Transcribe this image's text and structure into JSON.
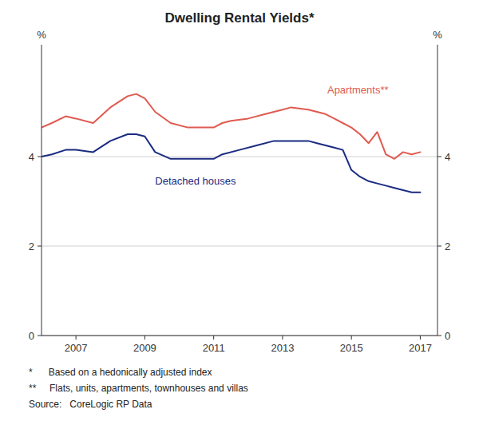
{
  "chart_data": {
    "type": "line",
    "title": "Dwelling Rental Yields*",
    "y_label": "%",
    "y2_label": "%",
    "xlim": [
      2006.0,
      2017.5
    ],
    "xticks": [
      2007,
      2009,
      2011,
      2013,
      2015,
      2017
    ],
    "ylim": [
      0,
      6.5
    ],
    "yticks": [
      0,
      2,
      4
    ],
    "y2lim": [
      0,
      6.5
    ],
    "y2ticks": [
      0,
      2,
      4
    ],
    "grid": true,
    "series": [
      {
        "color": "#e05a50",
        "x": [
          2006.0,
          2006.3,
          2006.7,
          2007.0,
          2007.5,
          2008.0,
          2008.5,
          2008.75,
          2009.0,
          2009.3,
          2009.75,
          2010.25,
          2010.75,
          2011.0,
          2011.25,
          2011.5,
          2012.0,
          2012.5,
          2012.75,
          2013.0,
          2013.25,
          2013.75,
          2014.0,
          2014.25,
          2014.5,
          2014.75,
          2015.0,
          2015.25,
          2015.5,
          2015.75,
          2016.0,
          2016.25,
          2016.5,
          2016.75,
          2017.0
        ],
        "values": [
          4.65,
          4.75,
          4.9,
          4.85,
          4.75,
          5.1,
          5.35,
          5.4,
          5.3,
          5.0,
          4.75,
          4.65,
          4.65,
          4.65,
          4.75,
          4.8,
          4.85,
          4.95,
          5.0,
          5.05,
          5.1,
          5.05,
          5.0,
          4.95,
          4.85,
          4.75,
          4.65,
          4.5,
          4.3,
          4.55,
          4.05,
          3.95,
          4.1,
          4.05,
          4.1
        ]
      },
      {
        "color": "#1a2b80",
        "x": [
          2006.0,
          2006.3,
          2006.7,
          2007.0,
          2007.5,
          2008.0,
          2008.5,
          2008.75,
          2009.0,
          2009.3,
          2009.75,
          2010.0,
          2010.5,
          2010.75,
          2011.0,
          2011.25,
          2011.75,
          2012.25,
          2012.75,
          2013.0,
          2013.25,
          2013.5,
          2013.75,
          2014.0,
          2014.25,
          2014.5,
          2014.75,
          2015.0,
          2015.25,
          2015.5,
          2015.75,
          2016.0,
          2016.25,
          2016.5,
          2016.75,
          2017.0
        ],
        "values": [
          4.0,
          4.05,
          4.15,
          4.15,
          4.1,
          4.35,
          4.5,
          4.5,
          4.45,
          4.1,
          3.95,
          3.95,
          3.95,
          3.95,
          3.95,
          4.05,
          4.15,
          4.25,
          4.35,
          4.35,
          4.35,
          4.35,
          4.35,
          4.3,
          4.25,
          4.2,
          4.15,
          3.7,
          3.55,
          3.45,
          3.4,
          3.35,
          3.3,
          3.25,
          3.2,
          3.2
        ]
      }
    ],
    "annotations": [
      {
        "text": "Apartments**",
        "x": 2014.3,
        "y": 5.5,
        "color": "#e05a50"
      },
      {
        "text": "Detached houses",
        "x": 2009.3,
        "y": 3.45,
        "color": "#1a2b80"
      }
    ],
    "footnotes": [
      "*      Based on a hedonically adjusted index",
      "**     Flats, units, apartments, townhouses and villas",
      "Source:   CoreLogic RP Data"
    ]
  }
}
